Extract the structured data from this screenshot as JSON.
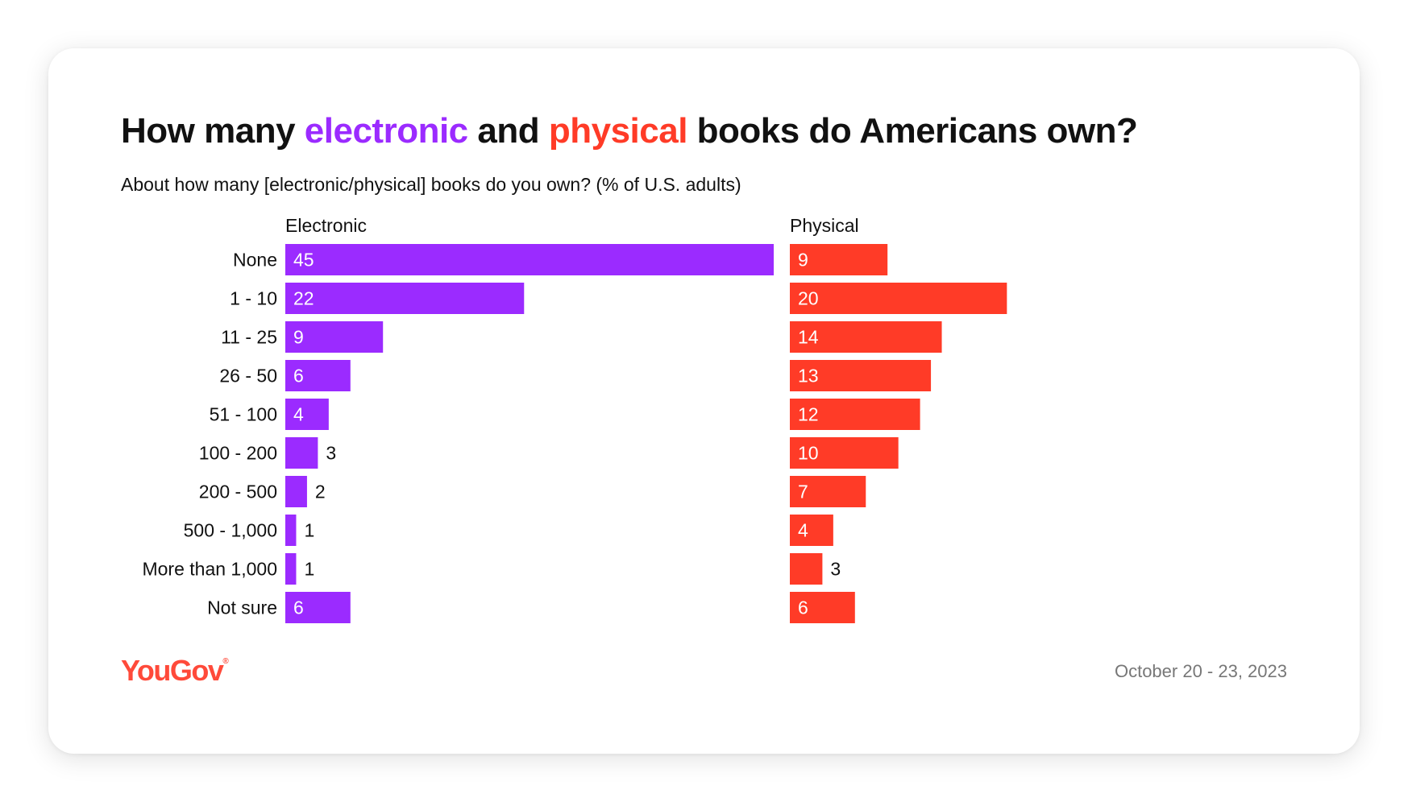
{
  "title": {
    "prefix": "How many ",
    "electronic_word": "electronic",
    "middle": " and ",
    "physical_word": "physical",
    "suffix": " books do Americans own?"
  },
  "subtitle": "About how many [electronic/physical] books do you own? (% of U.S. adults)",
  "footer": {
    "logo": "YouGov",
    "logo_mark": "®",
    "date": "October 20 - 23, 2023"
  },
  "colors": {
    "electronic": "#9b2bff",
    "physical": "#ff3b27",
    "text": "#111111",
    "muted": "#777777"
  },
  "chart_data": {
    "type": "bar",
    "orientation": "horizontal",
    "title": "How many electronic and physical books do Americans own?",
    "subtitle": "About how many [electronic/physical] books do you own? (% of U.S. adults)",
    "categories": [
      "None",
      "1 - 10",
      "11 - 25",
      "26 - 50",
      "51 - 100",
      "100 - 200",
      "200 - 500",
      "500 - 1,000",
      "More than 1,000",
      "Not sure"
    ],
    "series": [
      {
        "name": "Electronic",
        "values": [
          45,
          22,
          9,
          6,
          4,
          3,
          2,
          1,
          1,
          6
        ]
      },
      {
        "name": "Physical",
        "values": [
          9,
          20,
          14,
          13,
          12,
          10,
          7,
          4,
          3,
          6
        ]
      }
    ],
    "xlim": [
      0,
      45
    ],
    "xlabel": "",
    "ylabel": "",
    "unit": "% of U.S. adults",
    "grid": false,
    "legend": "panel-headers"
  }
}
